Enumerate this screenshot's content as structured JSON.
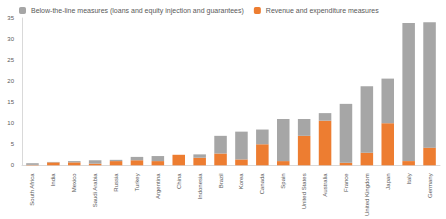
{
  "chart_data": {
    "type": "bar",
    "stacked": true,
    "grid": false,
    "legend": "top-left",
    "categories": [
      "South Africa",
      "India",
      "Mexico",
      "Saudi Arabia",
      "Russia",
      "Turkey",
      "Argentina",
      "China",
      "Indonesia",
      "Brazil",
      "Korea",
      "Canada",
      "Spain",
      "United States",
      "Australia",
      "France",
      "United Kingdom",
      "Japan",
      "Italy",
      "Germany"
    ],
    "series": [
      {
        "name": "Below-the-line measures (loans and equity injection and guarantees)",
        "color": "#a6a6a6",
        "values": [
          0.4,
          0.1,
          0.3,
          0.8,
          0.3,
          0.8,
          1.2,
          0,
          0.8,
          4.2,
          6.6,
          3.5,
          10.0,
          4.0,
          1.8,
          14.0,
          15.8,
          10.6,
          32.8,
          29.8
        ]
      },
      {
        "name": "Revenue and expenditure measures",
        "color": "#ed7d31",
        "values": [
          0.1,
          0.7,
          0.7,
          0.4,
          1.0,
          1.2,
          1.0,
          2.5,
          1.8,
          2.8,
          1.4,
          5.0,
          1.0,
          7.0,
          10.6,
          0.6,
          3.0,
          10.0,
          1.0,
          4.2
        ]
      }
    ],
    "ylim": [
      0,
      35
    ],
    "yticks": [
      0,
      5,
      10,
      15,
      20,
      25,
      30,
      35
    ]
  }
}
